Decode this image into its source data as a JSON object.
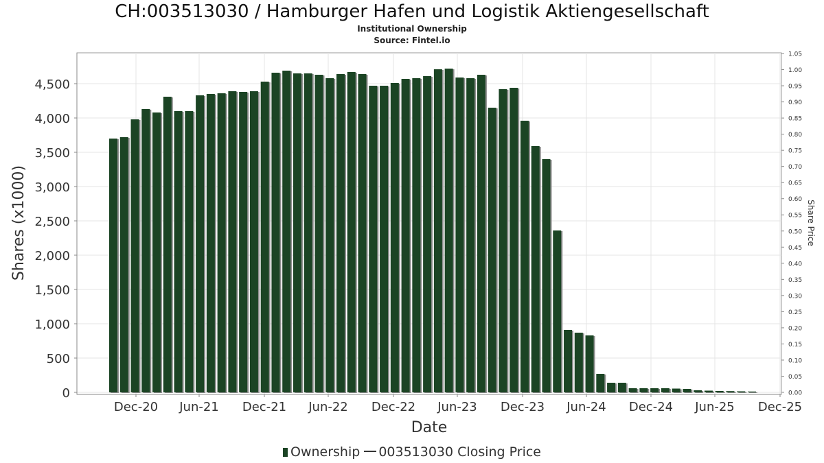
{
  "chart_data": {
    "type": "bar",
    "title": "CH:003513030 / Hamburger Hafen und Logistik Aktiengesellschaft",
    "subtitle_1": "Institutional Ownership",
    "subtitle_2": "Source: Fintel.io",
    "xlabel": "Date",
    "ylabel": "Shares (x1000)",
    "y2label": "Share Price",
    "ylim": [
      0,
      4900
    ],
    "y2lim": [
      0,
      1.05
    ],
    "yticks": [
      0,
      500,
      1000,
      1500,
      2000,
      2500,
      3000,
      3500,
      4000,
      4500
    ],
    "ytick_labels": [
      "0",
      "500",
      "1,000",
      "1,500",
      "2,000",
      "2,500",
      "3,000",
      "3,500",
      "4,000",
      "4,500"
    ],
    "y2ticks": [
      "0.00",
      "0.05",
      "0.10",
      "0.15",
      "0.20",
      "0.25",
      "0.30",
      "0.35",
      "0.40",
      "0.45",
      "0.50",
      "0.55",
      "0.60",
      "0.65",
      "0.70",
      "0.75",
      "0.80",
      "0.85",
      "0.90",
      "0.95",
      "1.00",
      "1.05"
    ],
    "xtick_labels": [
      "Dec-20",
      "Jun-21",
      "Dec-21",
      "Jun-22",
      "Dec-22",
      "Jun-23",
      "Dec-23",
      "Jun-24",
      "Dec-24",
      "Jun-25",
      "Dec-25"
    ],
    "grid": true,
    "legend_position": "bottom",
    "series": [
      {
        "name": "Ownership",
        "color": "#1b4424",
        "values": [
          3700,
          3720,
          3980,
          4130,
          4080,
          4310,
          4100,
          4100,
          4330,
          4350,
          4360,
          4390,
          4380,
          4390,
          4530,
          4660,
          4690,
          4650,
          4650,
          4630,
          4580,
          4640,
          4670,
          4640,
          4470,
          4470,
          4510,
          4570,
          4580,
          4610,
          4710,
          4720,
          4590,
          4580,
          4630,
          4150,
          4420,
          4440,
          3960,
          3590,
          3400,
          2360,
          910,
          870,
          830,
          270,
          140,
          140,
          60,
          60,
          60,
          60,
          55,
          50,
          30,
          25,
          20,
          18,
          15,
          12
        ]
      },
      {
        "name": "003513030 Closing Price",
        "color": "#333333",
        "values": []
      }
    ]
  }
}
